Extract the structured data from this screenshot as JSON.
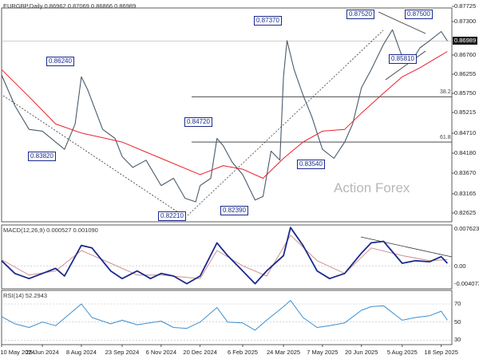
{
  "header": {
    "symbol_line": "EURGBP,Daily  0.86962 0.87069 0.86866 0.86989",
    "macd_line": "MACD(12,26,9) 0.000527 0.001090",
    "rsi_line": "RSI(14) 52.2943"
  },
  "watermark": "Action Forex",
  "colors": {
    "price": "#4a5b6b",
    "ma": "#e8202a",
    "macd": "#1a2a8c",
    "signal": "#d09090",
    "rsi": "#3a8fd0",
    "callout": "#1a2a8c"
  },
  "chart_data": [
    {
      "type": "line",
      "title": "EURGBP,Daily",
      "x": [
        "10 May 2024",
        "25 Jun 2024",
        "8 Aug 2024",
        "23 Sep 2024",
        "6 Nov 2024",
        "20 Dec 2024",
        "6 Feb 2025",
        "24 Mar 2025",
        "7 May 2025",
        "20 Jun 2025",
        "5 Aug 2025",
        "18 Sep 2025"
      ],
      "ylim": [
        0.82,
        0.879
      ],
      "yticks": [
        "0.87725",
        "0.87300",
        "0.86989",
        "0.86760",
        "0.86255",
        "0.85750",
        "0.85215",
        "0.84710",
        "0.84180",
        "0.83670",
        "0.83165",
        "0.82625"
      ],
      "current_price": "0.86989",
      "annotations": [
        "0.86240",
        "0.83820",
        "0.84720",
        "0.82210",
        "0.82390",
        "0.87370",
        "0.83540",
        "0.87520",
        "0.87500",
        "0.85810"
      ],
      "fib_levels": [
        {
          "label": "38.2",
          "value": 0.8545
        },
        {
          "label": "61.8",
          "value": 0.842
        }
      ],
      "series": [
        {
          "name": "EURGBP close",
          "points": [
            [
              "10 May 2024",
              0.8605
            ],
            [
              "25 May 2024",
              0.852
            ],
            [
              "10 Jun 2024",
              0.8455
            ],
            [
              "25 Jun 2024",
              0.845
            ],
            [
              "10 Jul 2024",
              0.842
            ],
            [
              "20 Jul 2024",
              0.84
            ],
            [
              "1 Aug 2024",
              0.847
            ],
            [
              "8 Aug 2024",
              0.86
            ],
            [
              "15 Aug 2024",
              0.8565
            ],
            [
              "1 Sep 2024",
              0.8455
            ],
            [
              "15 Sep 2024",
              0.843
            ],
            [
              "23 Sep 2024",
              0.838
            ],
            [
              "5 Oct 2024",
              0.835
            ],
            [
              "20 Oct 2024",
              0.837
            ],
            [
              "6 Nov 2024",
              0.83
            ],
            [
              "20 Nov 2024",
              0.832
            ],
            [
              "3 Dec 2024",
              0.8265
            ],
            [
              "15 Dec 2024",
              0.8255
            ],
            [
              "20 Dec 2024",
              0.83
            ],
            [
              "1 Jan 2025",
              0.832
            ],
            [
              "8 Jan 2025",
              0.843
            ],
            [
              "15 Jan 2025",
              0.841
            ],
            [
              "25 Jan 2025",
              0.8365
            ],
            [
              "6 Feb 2025",
              0.833
            ],
            [
              "20 Feb 2025",
              0.826
            ],
            [
              "1 Mar 2025",
              0.827
            ],
            [
              "10 Mar 2025",
              0.8395
            ],
            [
              "20 Mar 2025",
              0.837
            ],
            [
              "24 Mar 2025",
              0.86
            ],
            [
              "28 Mar 2025",
              0.87
            ],
            [
              "5 Apr 2025",
              0.862
            ],
            [
              "15 Apr 2025",
              0.855
            ],
            [
              "25 Apr 2025",
              0.849
            ],
            [
              "7 May 2025",
              0.84
            ],
            [
              "20 May 2025",
              0.8375
            ],
            [
              "1 Jun 2025",
              0.842
            ],
            [
              "10 Jun 2025",
              0.847
            ],
            [
              "20 Jun 2025",
              0.857
            ],
            [
              "1 Jul 2025",
              0.862
            ],
            [
              "15 Jul 2025",
              0.869
            ],
            [
              "25 Jul 2025",
              0.873
            ],
            [
              "5 Aug 2025",
              0.8655
            ],
            [
              "15 Aug 2025",
              0.864
            ],
            [
              "25 Aug 2025",
              0.868
            ],
            [
              "5 Sep 2025",
              0.87
            ],
            [
              "18 Sep 2025",
              0.8725
            ],
            [
              "25 Sep 2025",
              0.8699
            ]
          ]
        },
        {
          "name": "moving average",
          "points": [
            [
              "10 May 2024",
              0.862
            ],
            [
              "10 Jun 2024",
              0.8545
            ],
            [
              "10 Jul 2024",
              0.847
            ],
            [
              "8 Aug 2024",
              0.8445
            ],
            [
              "23 Sep 2024",
              0.842
            ],
            [
              "6 Nov 2024",
              0.8375
            ],
            [
              "20 Dec 2024",
              0.833
            ],
            [
              "15 Jan 2025",
              0.8355
            ],
            [
              "6 Feb 2025",
              0.8345
            ],
            [
              "1 Mar 2025",
              0.832
            ],
            [
              "24 Mar 2025",
              0.8375
            ],
            [
              "15 Apr 2025",
              0.842
            ],
            [
              "7 May 2025",
              0.845
            ],
            [
              "1 Jun 2025",
              0.8455
            ],
            [
              "20 Jun 2025",
              0.85
            ],
            [
              "15 Jul 2025",
              0.8555
            ],
            [
              "5 Aug 2025",
              0.86
            ],
            [
              "25 Aug 2025",
              0.8625
            ],
            [
              "18 Sep 2025",
              0.866
            ],
            [
              "25 Sep 2025",
              0.867
            ]
          ]
        }
      ]
    },
    {
      "type": "line",
      "title": "MACD(12,26,9)",
      "ylim": [
        -0.0045,
        0.008
      ],
      "yticks": [
        "0.007623",
        "0.00",
        "-0.004073"
      ],
      "series": [
        {
          "name": "MACD",
          "points": [
            [
              "10 May 2024",
              0.001
            ],
            [
              "25 May 2024",
              -0.0015
            ],
            [
              "10 Jun 2024",
              -0.0025
            ],
            [
              "25 Jun 2024",
              -0.0015
            ],
            [
              "10 Jul 2024",
              -0.0005
            ],
            [
              "20 Jul 2024",
              -0.002
            ],
            [
              "8 Aug 2024",
              0.004
            ],
            [
              "20 Aug 2024",
              0.0035
            ],
            [
              "10 Sep 2024",
              -0.001
            ],
            [
              "23 Sep 2024",
              -0.0025
            ],
            [
              "10 Oct 2024",
              -0.001
            ],
            [
              "25 Oct 2024",
              -0.0025
            ],
            [
              "6 Nov 2024",
              -0.0015
            ],
            [
              "20 Nov 2024",
              -0.002
            ],
            [
              "5 Dec 2024",
              -0.0035
            ],
            [
              "20 Dec 2024",
              -0.002
            ],
            [
              "8 Jan 2025",
              0.0045
            ],
            [
              "20 Jan 2025",
              0.002
            ],
            [
              "6 Feb 2025",
              -0.001
            ],
            [
              "20 Feb 2025",
              -0.0035
            ],
            [
              "5 Mar 2025",
              -0.001
            ],
            [
              "24 Mar 2025",
              0.002
            ],
            [
              "1 Apr 2025",
              0.0075
            ],
            [
              "15 Apr 2025",
              0.004
            ],
            [
              "1 May 2025",
              -0.001
            ],
            [
              "15 May 2025",
              -0.0025
            ],
            [
              "1 Jun 2025",
              -0.0015
            ],
            [
              "20 Jun 2025",
              0.0025
            ],
            [
              "1 Jul 2025",
              0.0045
            ],
            [
              "15 Jul 2025",
              0.0048
            ],
            [
              "5 Aug 2025",
              0.0005
            ],
            [
              "20 Aug 2025",
              0.001
            ],
            [
              "5 Sep 2025",
              0.0008
            ],
            [
              "18 Sep 2025",
              0.0018
            ],
            [
              "25 Sep 2025",
              0.0005
            ]
          ]
        },
        {
          "name": "Signal",
          "points": [
            [
              "10 May 2024",
              0.0012
            ],
            [
              "10 Jun 2024",
              -0.0018
            ],
            [
              "10 Jul 2024",
              -0.001
            ],
            [
              "8 Aug 2024",
              0.003
            ],
            [
              "10 Sep 2024",
              0.0005
            ],
            [
              "10 Oct 2024",
              -0.0018
            ],
            [
              "6 Nov 2024",
              -0.0018
            ],
            [
              "20 Dec 2024",
              -0.0025
            ],
            [
              "8 Jan 2025",
              0.003
            ],
            [
              "6 Feb 2025",
              0.0
            ],
            [
              "5 Mar 2025",
              -0.002
            ],
            [
              "1 Apr 2025",
              0.006
            ],
            [
              "1 May 2025",
              0.001
            ],
            [
              "1 Jun 2025",
              -0.0015
            ],
            [
              "1 Jul 2025",
              0.0035
            ],
            [
              "5 Aug 2025",
              0.002
            ],
            [
              "5 Sep 2025",
              0.001
            ],
            [
              "25 Sep 2025",
              0.0012
            ]
          ]
        }
      ]
    },
    {
      "type": "line",
      "title": "RSI(14)",
      "ylim": [
        25,
        85
      ],
      "yticks": [
        "70",
        "50",
        "30"
      ],
      "series": [
        {
          "name": "RSI",
          "points": [
            [
              "10 May 2024",
              56
            ],
            [
              "25 May 2024",
              48
            ],
            [
              "10 Jun 2024",
              44
            ],
            [
              "25 Jun 2024",
              50
            ],
            [
              "10 Jul 2024",
              46
            ],
            [
              "8 Aug 2024",
              70
            ],
            [
              "20 Aug 2024",
              55
            ],
            [
              "10 Sep 2024",
              48
            ],
            [
              "23 Sep 2024",
              52
            ],
            [
              "10 Oct 2024",
              47
            ],
            [
              "6 Nov 2024",
              51
            ],
            [
              "20 Nov 2024",
              44
            ],
            [
              "5 Dec 2024",
              43
            ],
            [
              "20 Dec 2024",
              50
            ],
            [
              "8 Jan 2025",
              66
            ],
            [
              "20 Jan 2025",
              50
            ],
            [
              "6 Feb 2025",
              49
            ],
            [
              "20 Feb 2025",
              41
            ],
            [
              "5 Mar 2025",
              52
            ],
            [
              "24 Mar 2025",
              67
            ],
            [
              "1 Apr 2025",
              74
            ],
            [
              "15 Apr 2025",
              55
            ],
            [
              "1 May 2025",
              44
            ],
            [
              "15 May 2025",
              46
            ],
            [
              "1 Jun 2025",
              49
            ],
            [
              "20 Jun 2025",
              63
            ],
            [
              "1 Jul 2025",
              67
            ],
            [
              "15 Jul 2025",
              68
            ],
            [
              "5 Aug 2025",
              52
            ],
            [
              "20 Aug 2025",
              55
            ],
            [
              "5 Sep 2025",
              57
            ],
            [
              "18 Sep 2025",
              62
            ],
            [
              "25 Sep 2025",
              52
            ]
          ]
        }
      ]
    }
  ]
}
